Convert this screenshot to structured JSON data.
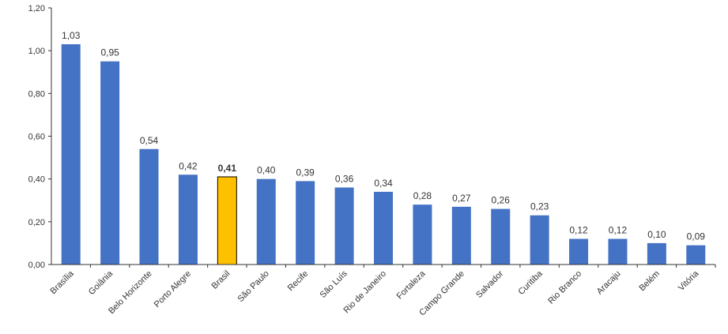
{
  "chart_data": {
    "type": "bar",
    "title": "",
    "xlabel": "",
    "ylabel": "",
    "ylim": [
      0,
      1.2
    ],
    "yticks": [
      "0,00",
      "0,20",
      "0,40",
      "0,60",
      "0,80",
      "1,00",
      "1,20"
    ],
    "yticks_values": [
      0,
      0.2,
      0.4,
      0.6,
      0.8,
      1.0,
      1.2
    ],
    "grid": false,
    "categories": [
      "Brasília",
      "Goiânia",
      "Belo Horizonte",
      "Porto Alegre",
      "Brasil",
      "São Paulo",
      "Recife",
      "São Luís",
      "Rio de Janeiro",
      "Fortaleza",
      "Campo Grande",
      "Salvador",
      "Curitiba",
      "Rio Branco",
      "Aracaju",
      "Belém",
      "Vitória"
    ],
    "values": [
      1.03,
      0.95,
      0.54,
      0.42,
      0.41,
      0.4,
      0.39,
      0.36,
      0.34,
      0.28,
      0.27,
      0.26,
      0.23,
      0.12,
      0.12,
      0.1,
      0.09
    ],
    "value_labels": [
      "1,03",
      "0,95",
      "0,54",
      "0,42",
      "0,41",
      "0,40",
      "0,39",
      "0,36",
      "0,34",
      "0,28",
      "0,27",
      "0,26",
      "0,23",
      "0,12",
      "0,12",
      "0,10",
      "0,09"
    ],
    "highlight_category": "Brasil",
    "colors": {
      "bar": "#4472C4",
      "highlight": "#FFC000",
      "highlight_stroke": "#000000",
      "axis": "#333333"
    }
  }
}
